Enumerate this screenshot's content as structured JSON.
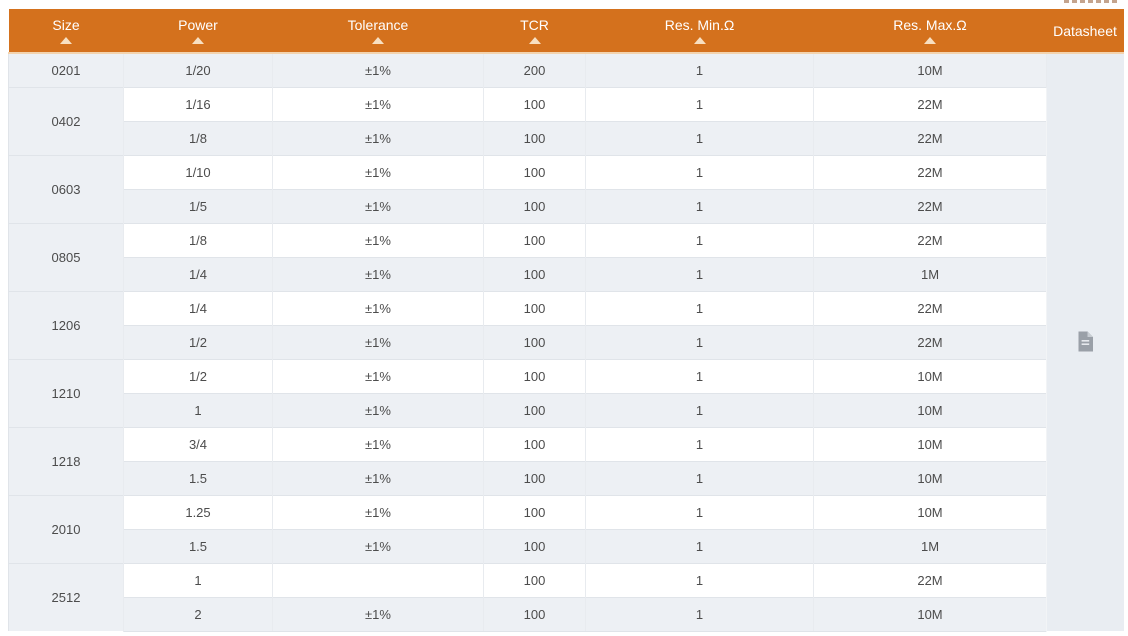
{
  "colors": {
    "header_bg": "#d4711d",
    "header_text": "#ffffff",
    "sort_arrow": "#f8e0c2",
    "header_underline": "#f3d3ae",
    "row_bg": "#ffffff",
    "row_alt_bg": "#edf0f4",
    "size_col_bg": "#edf0f4",
    "datasheet_col_bg": "#e9edf2",
    "border": "#e0e4e9",
    "cell_text": "#4c4c4c",
    "icon": "#9aa0a8"
  },
  "table": {
    "columns": [
      {
        "label": "Size",
        "sortable": true
      },
      {
        "label": "Power",
        "sortable": true
      },
      {
        "label": "Tolerance",
        "sortable": true
      },
      {
        "label": "TCR",
        "sortable": true
      },
      {
        "label": "Res. Min.Ω",
        "sortable": true
      },
      {
        "label": "Res. Max.Ω",
        "sortable": true
      },
      {
        "label": "Datasheet",
        "sortable": false
      }
    ],
    "groups": [
      {
        "size": "0201",
        "rows": [
          [
            "1/20",
            "±1%",
            "200",
            "1",
            "10M"
          ]
        ]
      },
      {
        "size": "0402",
        "rows": [
          [
            "1/16",
            "±1%",
            "100",
            "1",
            "22M"
          ],
          [
            "1/8",
            "±1%",
            "100",
            "1",
            "22M"
          ]
        ]
      },
      {
        "size": "0603",
        "rows": [
          [
            "1/10",
            "±1%",
            "100",
            "1",
            "22M"
          ],
          [
            "1/5",
            "±1%",
            "100",
            "1",
            "22M"
          ]
        ]
      },
      {
        "size": "0805",
        "rows": [
          [
            "1/8",
            "±1%",
            "100",
            "1",
            "22M"
          ],
          [
            "1/4",
            "±1%",
            "100",
            "1",
            "1M"
          ]
        ]
      },
      {
        "size": "1206",
        "rows": [
          [
            "1/4",
            "±1%",
            "100",
            "1",
            "22M"
          ],
          [
            "1/2",
            "±1%",
            "100",
            "1",
            "22M"
          ]
        ]
      },
      {
        "size": "1210",
        "rows": [
          [
            "1/2",
            "±1%",
            "100",
            "1",
            "10M"
          ],
          [
            "1",
            "±1%",
            "100",
            "1",
            "10M"
          ]
        ]
      },
      {
        "size": "1218",
        "rows": [
          [
            "3/4",
            "±1%",
            "100",
            "1",
            "10M"
          ],
          [
            "1.5",
            "±1%",
            "100",
            "1",
            "10M"
          ]
        ]
      },
      {
        "size": "2010",
        "rows": [
          [
            "1.25",
            "±1%",
            "100",
            "1",
            "10M"
          ],
          [
            "1.5",
            "±1%",
            "100",
            "1",
            "1M"
          ]
        ]
      },
      {
        "size": "2512",
        "rows": [
          [
            "1",
            "",
            "100",
            "1",
            "22M"
          ],
          [
            "2",
            "±1%",
            "100",
            "1",
            "10M"
          ]
        ]
      }
    ],
    "datasheet_icon": "document-icon"
  }
}
